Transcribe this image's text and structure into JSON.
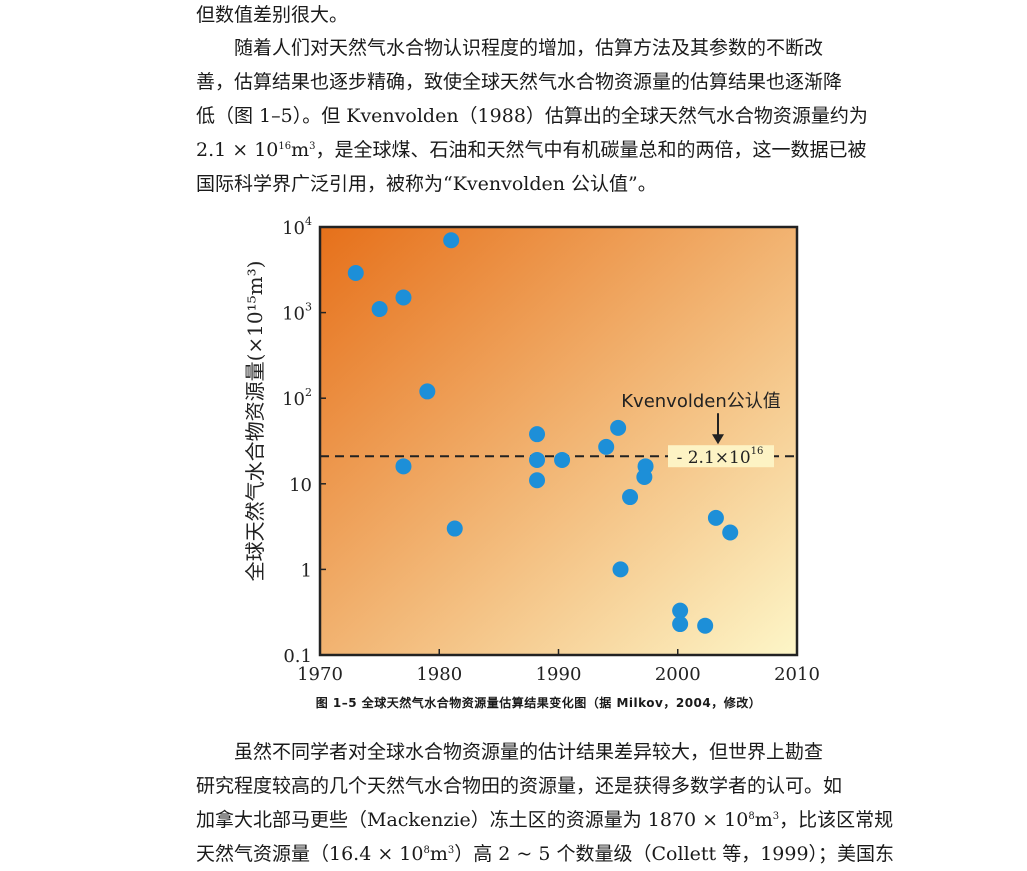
{
  "text_top": {
    "p1_lines": [
      "但数值差别很大。"
    ],
    "p2_lines": [
      "随着人们对天然气水合物认识程度的增加，估算方法及其参数的不断改",
      "善，估算结果也逐步精确，致使全球天然气水合物资源量的估算结果也逐渐降",
      "低（图 1–5）。但 Kvenvolden（1988）估算出的全球天然气水合物资源量约为"
    ],
    "p2_l4_a": "2.1 × 10",
    "p2_l4_exp": "16",
    "p2_l4_b": "m",
    "p2_l4_exp2": "3",
    "p2_l4_c": "，是全球煤、石油和天然气中有机碳量总和的两倍，这一数据已被",
    "p2_l5": "国际科学界广泛引用，被称为“Kvenvolden 公认值”。"
  },
  "figure": {
    "caption": "图 1–5  全球天然气水合物资源量估算结果变化图（据 Milkov，2004，修改）"
  },
  "chart_data": {
    "type": "scatter",
    "title": "",
    "xlabel": "",
    "ylabel": "全球天然气水合物资源量(×10¹⁵m³)",
    "x_range": [
      1970,
      2010
    ],
    "y_range": [
      0.1,
      10000
    ],
    "y_scale": "log",
    "x_ticks": [
      "1970",
      "1980",
      "1990",
      "2000",
      "2010"
    ],
    "y_ticks": [
      {
        "value": 10000,
        "base": "10",
        "exp": "4"
      },
      {
        "value": 1000,
        "base": "10",
        "exp": "3"
      },
      {
        "value": 100,
        "base": "10",
        "exp": "2"
      },
      {
        "value": 10,
        "base": "10",
        "exp": ""
      },
      {
        "value": 1,
        "base": "1",
        "exp": ""
      },
      {
        "value": 0.1,
        "base": "0.1",
        "exp": ""
      }
    ],
    "background_gradient": [
      "#e6701a",
      "#fdf6c8"
    ],
    "point_color": "#1d8fd8",
    "reference_line": {
      "value": 21,
      "label_base": "2.1×10",
      "label_exp": "16",
      "annotation": "Kvenvolden公认值"
    },
    "series": [
      {
        "points": [
          [
            1973,
            2900
          ],
          [
            1975,
            1100
          ],
          [
            1977,
            1500
          ],
          [
            1977,
            16
          ],
          [
            1979,
            120
          ],
          [
            1981,
            7000
          ],
          [
            1981.3,
            3
          ],
          [
            1988.2,
            38
          ],
          [
            1988.2,
            19
          ],
          [
            1988.2,
            11
          ],
          [
            1990.3,
            19
          ],
          [
            1994,
            27
          ],
          [
            1995,
            45
          ],
          [
            1995.2,
            1
          ],
          [
            1996,
            7
          ],
          [
            1997.3,
            16
          ],
          [
            1997.2,
            12
          ],
          [
            2000.2,
            0.33
          ],
          [
            2000.2,
            0.23
          ],
          [
            2002.3,
            0.22
          ],
          [
            2003.2,
            4
          ],
          [
            2004.4,
            2.7
          ]
        ]
      }
    ]
  },
  "text_bottom": {
    "l1": "虽然不同学者对全球水合物资源量的估计结果差异较大，但世界上勘查",
    "l2": "研究程度较高的几个天然气水合物田的资源量，还是获得多数学者的认可。如",
    "l3_a": "加拿大北部马更些（Mackenzie）冻土区的资源量为 1870 × 10",
    "l3_exp": "8",
    "l3_b": "m",
    "l3_exp2": "3",
    "l3_c": "，比该区常规",
    "l4_a": "天然气资源量（16.4 × 10",
    "l4_exp": "8",
    "l4_b": "m",
    "l4_exp2": "3",
    "l4_c": "）高 2 ~ 5 个数量级（Collett 等，1999）；美国东"
  }
}
